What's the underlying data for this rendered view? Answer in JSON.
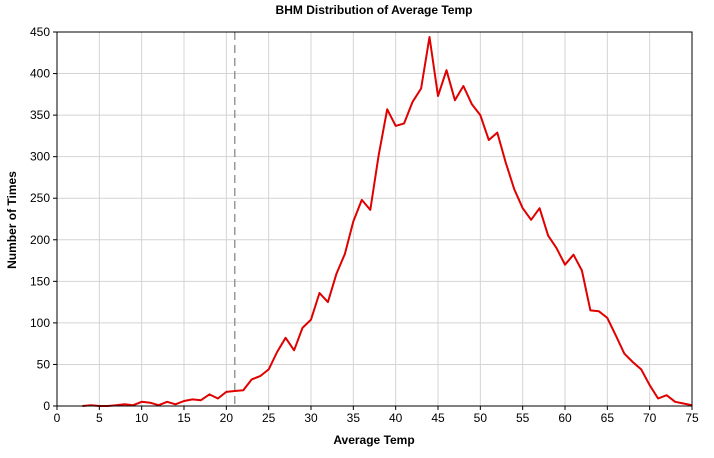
{
  "chart_data": {
    "type": "line",
    "title": "BHM Distribution of Average Temp",
    "xlabel": "Average Temp",
    "ylabel": "Number of Times",
    "xlim": [
      0,
      75
    ],
    "ylim": [
      0,
      450
    ],
    "xticks": [
      0,
      5,
      10,
      15,
      20,
      25,
      30,
      35,
      40,
      45,
      50,
      55,
      60,
      65,
      70,
      75
    ],
    "yticks": [
      0,
      50,
      100,
      150,
      200,
      250,
      300,
      350,
      400,
      450
    ],
    "grid": true,
    "reference_line": {
      "x": 21,
      "style": "dashed",
      "color": "#808080"
    },
    "series": [
      {
        "color": "#e00000",
        "x": [
          3,
          4,
          5,
          6,
          7,
          8,
          9,
          10,
          11,
          12,
          13,
          14,
          15,
          16,
          17,
          18,
          19,
          20,
          21,
          22,
          23,
          24,
          25,
          26,
          27,
          28,
          29,
          30,
          31,
          32,
          33,
          34,
          35,
          36,
          37,
          38,
          39,
          40,
          41,
          42,
          43,
          44,
          45,
          46,
          47,
          48,
          49,
          50,
          51,
          52,
          53,
          54,
          55,
          56,
          57,
          58,
          59,
          60,
          61,
          62,
          63,
          64,
          65,
          66,
          67,
          68,
          69,
          70,
          71,
          72,
          73,
          74,
          75
        ],
        "values": [
          0,
          1,
          0,
          0,
          1,
          2,
          1,
          5,
          4,
          1,
          5,
          2,
          6,
          8,
          7,
          14,
          9,
          17,
          18,
          19,
          32,
          36,
          44,
          65,
          82,
          67,
          94,
          104,
          136,
          125,
          159,
          183,
          222,
          248,
          236,
          302,
          357,
          337,
          340,
          366,
          382,
          444,
          373,
          404,
          368,
          385,
          363,
          350,
          320,
          329,
          293,
          261,
          238,
          224,
          238,
          205,
          190,
          170,
          182,
          163,
          115,
          114,
          106,
          85,
          63,
          53,
          44,
          25,
          9,
          13,
          5,
          3,
          1
        ]
      }
    ]
  }
}
